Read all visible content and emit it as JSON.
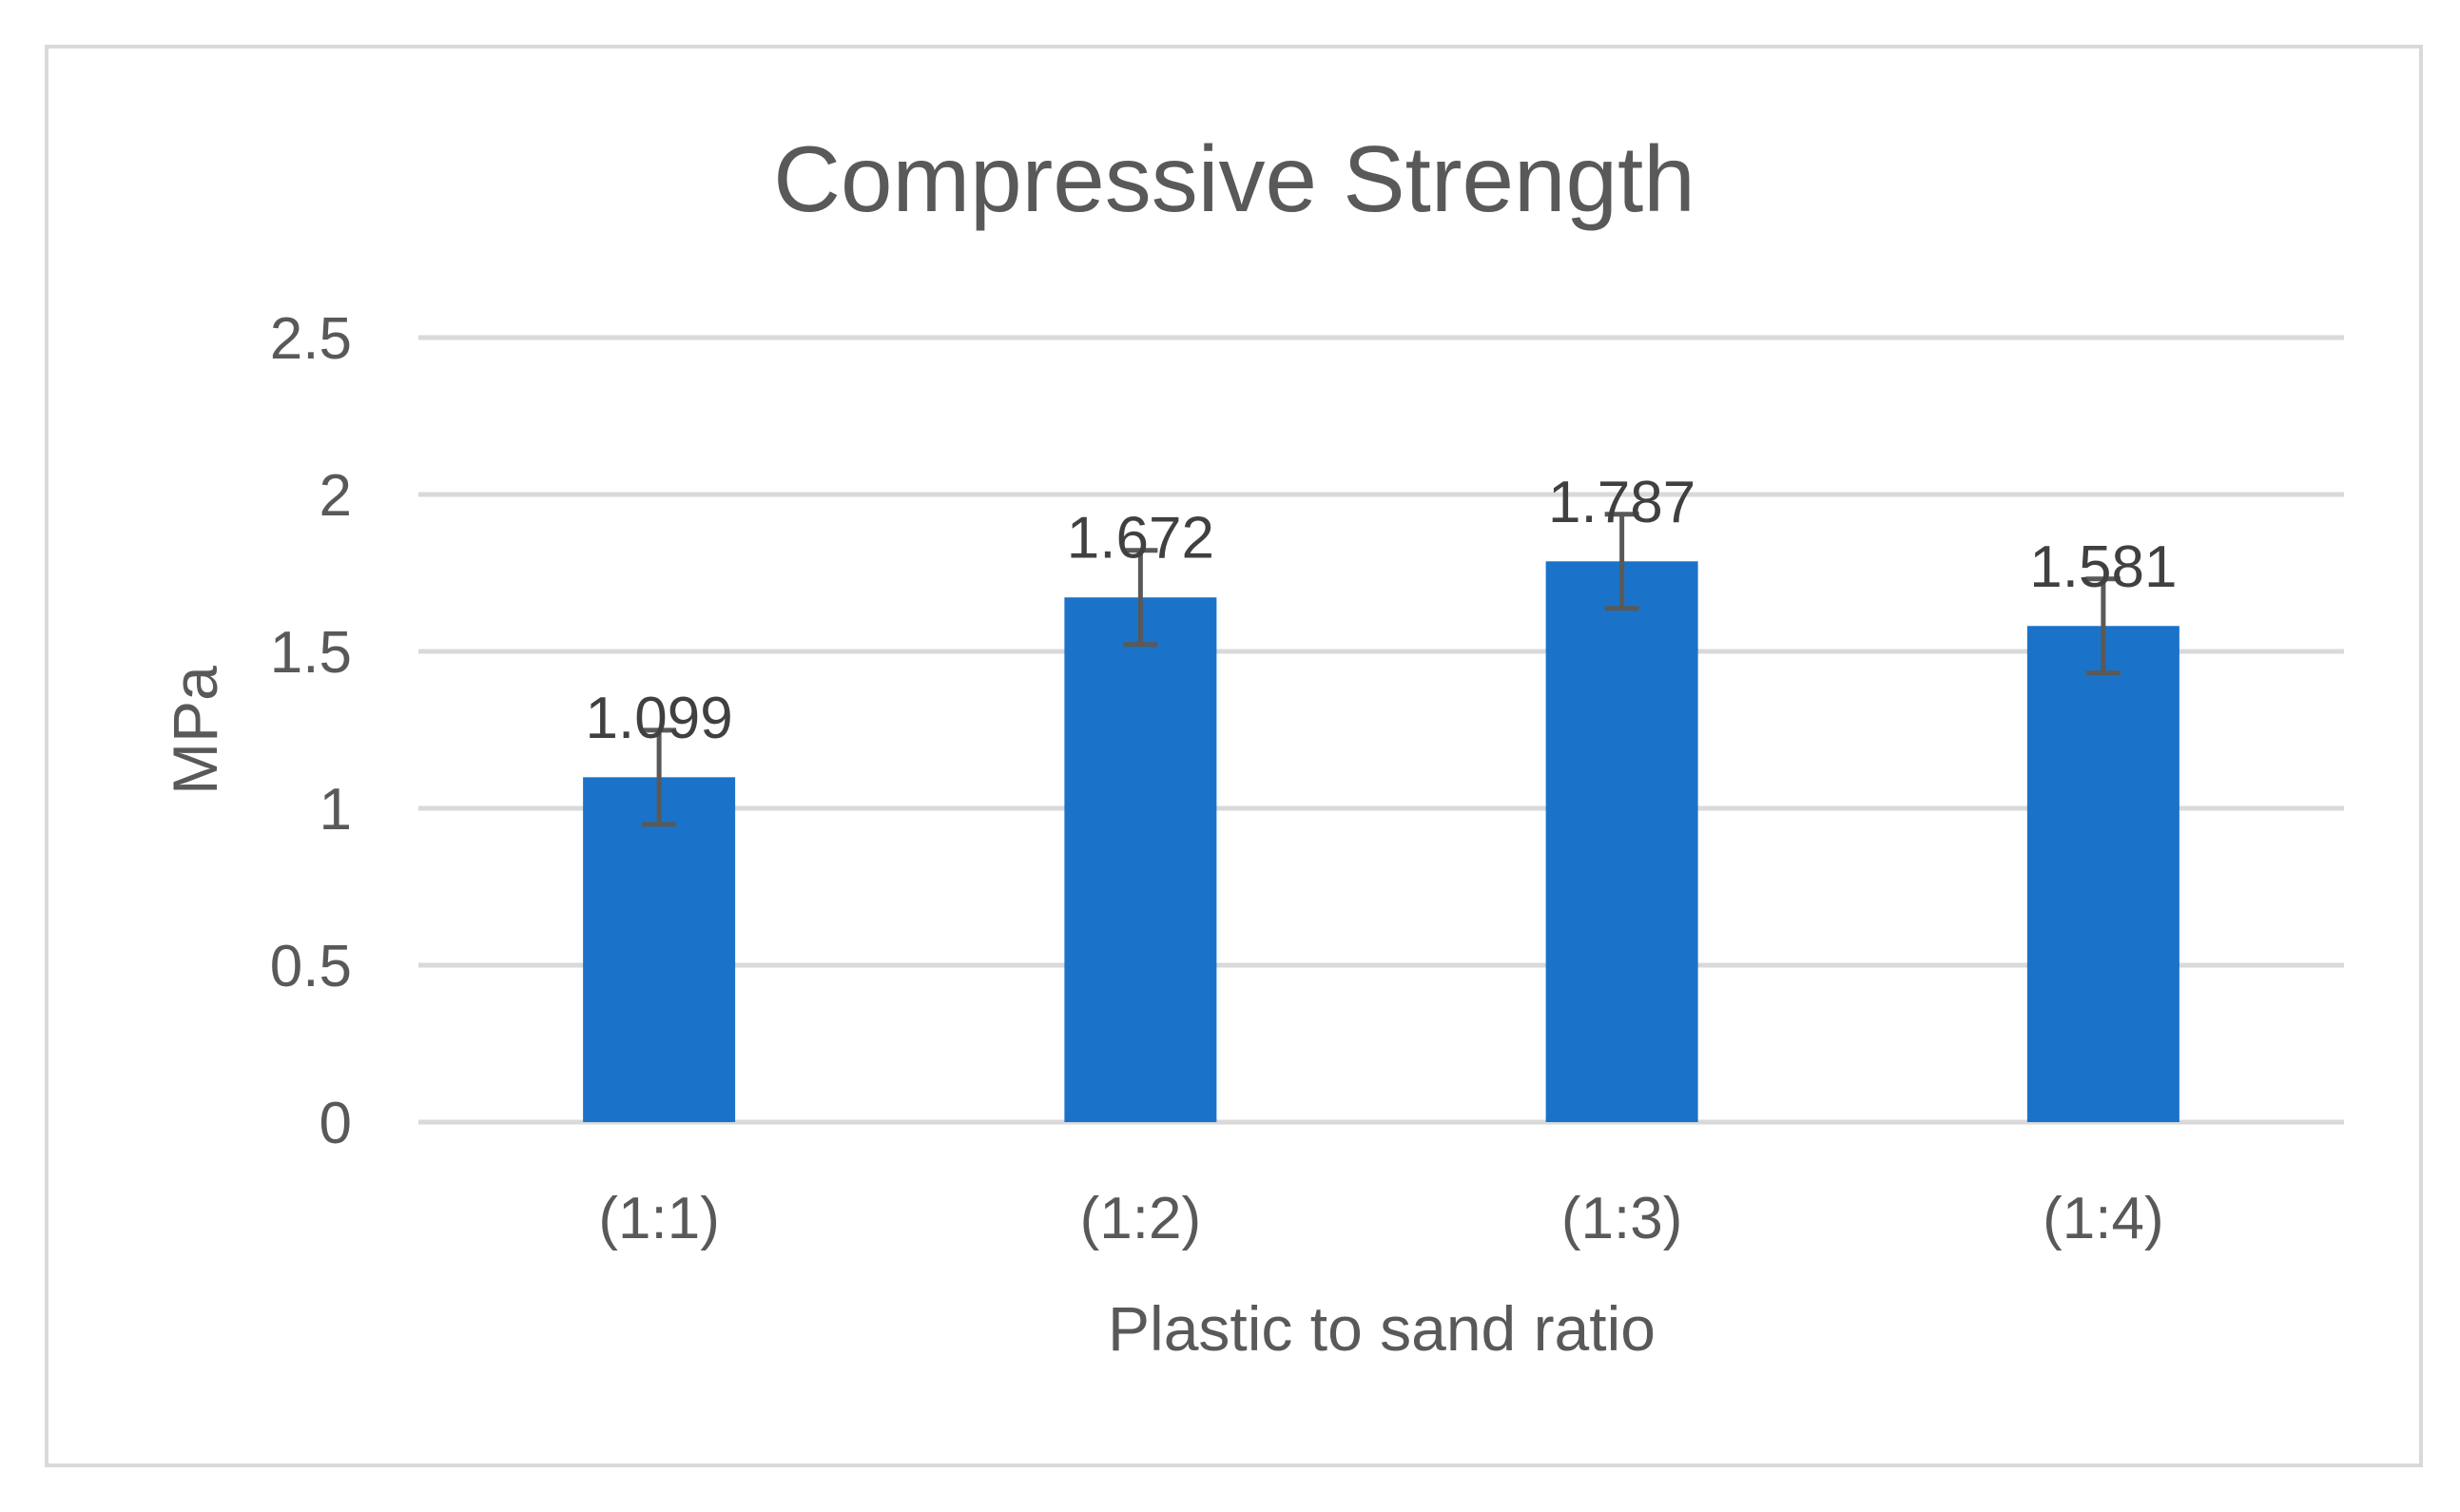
{
  "chart_data": {
    "type": "bar",
    "title": "Compressive Strength",
    "xlabel": "Plastic to sand ratio",
    "ylabel": "MPa",
    "categories": [
      "(1:1)",
      "(1:2)",
      "(1:3)",
      "(1:4)"
    ],
    "values": [
      1.099,
      1.672,
      1.787,
      1.581
    ],
    "data_labels": [
      "1.099",
      "1.672",
      "1.787",
      "1.581"
    ],
    "error_bars": [
      0.15,
      0.15,
      0.15,
      0.15
    ],
    "ylim": [
      0,
      2.5
    ],
    "yticks": [
      0,
      0.5,
      1,
      1.5,
      2,
      2.5
    ],
    "ytick_labels": [
      "0",
      "0.5",
      "1",
      "1.5",
      "2",
      "2.5"
    ],
    "grid": true,
    "legend": "none",
    "bar_color": "#1a73c8",
    "error_bar_color": "#595959",
    "gridline_color": "#d9d9d9"
  }
}
